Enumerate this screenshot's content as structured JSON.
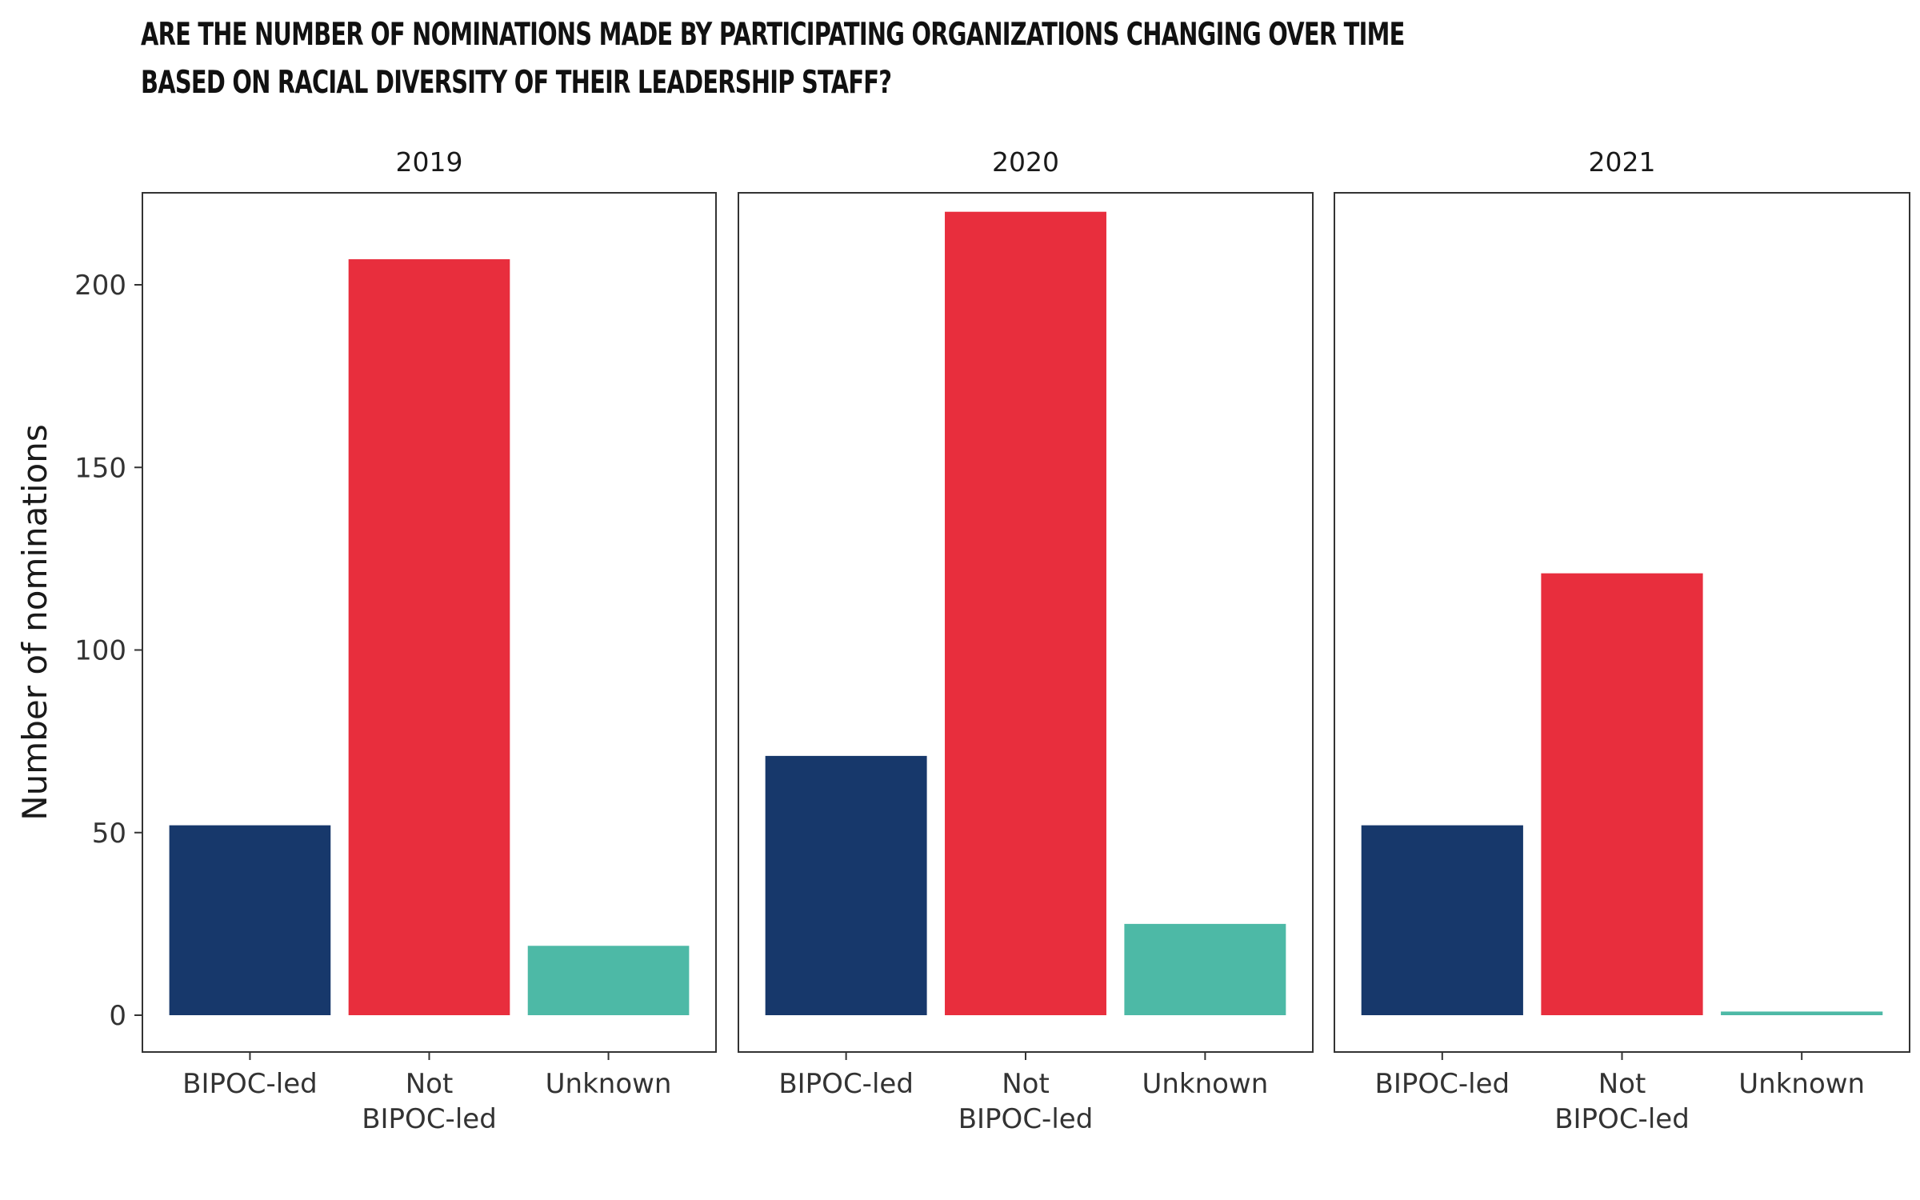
{
  "chart_data": {
    "type": "bar",
    "title": "Are the number of nominations made by participating organizations changing over time based on racial diversity of their leadership staff?",
    "ylabel": "Number of nominations",
    "xlabel": "",
    "ylim": [
      0,
      220
    ],
    "yticks": [
      0,
      50,
      100,
      150,
      200
    ],
    "categories": [
      "BIPOC-led",
      "Not\nBIPOC-led",
      "Unknown"
    ],
    "colors": [
      "#17386b",
      "#e82e3d",
      "#4db9a6"
    ],
    "grid": false,
    "legend": "none",
    "facets": [
      {
        "label": "2019",
        "values": [
          52,
          207,
          19
        ]
      },
      {
        "label": "2020",
        "values": [
          71,
          220,
          25
        ]
      },
      {
        "label": "2021",
        "values": [
          52,
          121,
          1
        ]
      }
    ]
  }
}
